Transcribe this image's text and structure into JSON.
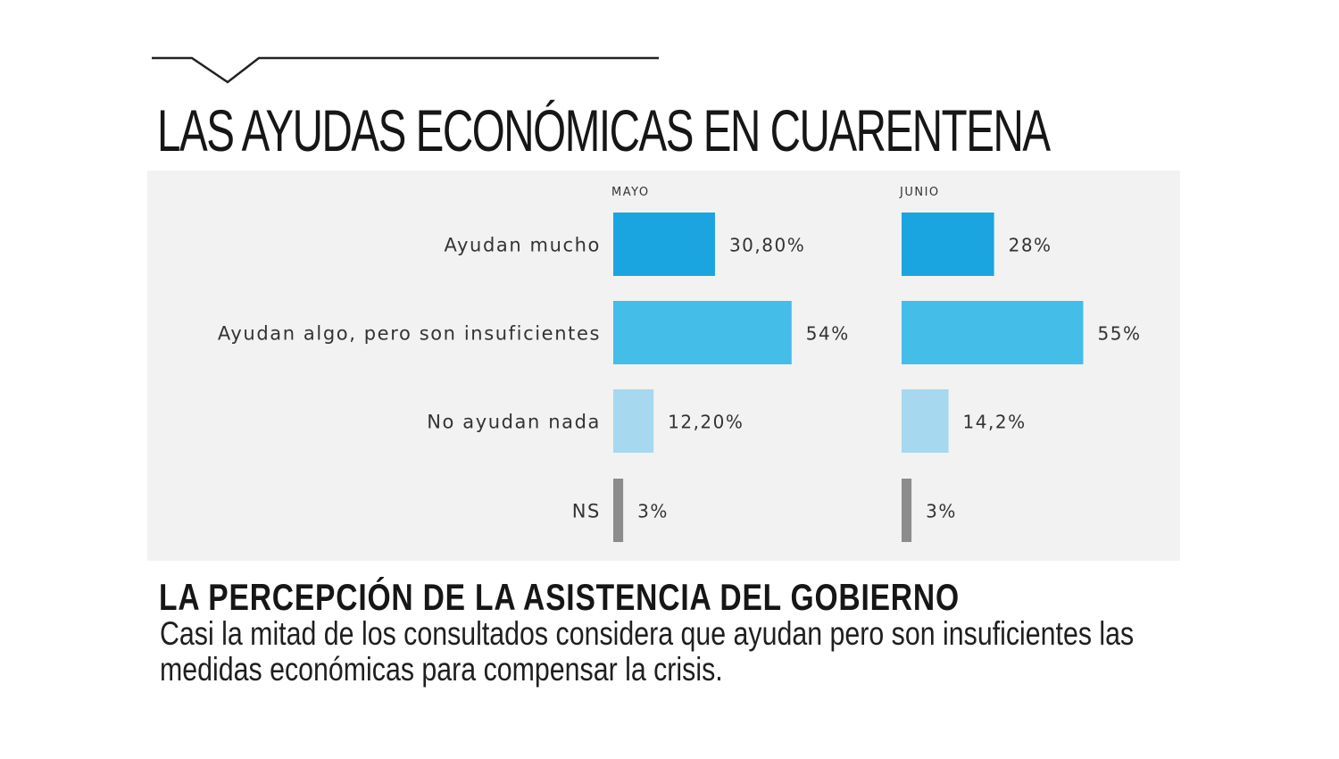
{
  "headline": {
    "title": "LAS AYUDAS ECONÓMICAS EN CUARENTENA"
  },
  "footer": {
    "subtitle": "LA PERCEPCIÓN DE LA ASISTENCIA DEL GOBIERNO",
    "description": "Casi la mitad de los consultados considera que ayudan pero son insuficientes las medidas económicas para compensar la crisis."
  },
  "chart_data": {
    "type": "bar",
    "orientation": "horizontal",
    "title": "",
    "xlabel": "",
    "ylabel": "",
    "grid": false,
    "legend": "none",
    "xlim": [
      0,
      60
    ],
    "categories": [
      "Ayudan mucho",
      "Ayudan algo, pero son insuficientes",
      "No ayudan nada",
      "NS"
    ],
    "category_colors": [
      "#1aa5e0",
      "#45bde9",
      "#a6d8f0",
      "#8c8c8c"
    ],
    "series": [
      {
        "name": "MAYO",
        "values": [
          30.8,
          54,
          12.2,
          3
        ],
        "labels": [
          "30,80%",
          "54%",
          "12,20%",
          "3%"
        ]
      },
      {
        "name": "JUNIO",
        "values": [
          28,
          55,
          14.2,
          3
        ],
        "labels": [
          "28%",
          "55%",
          "14,2%",
          "3%"
        ]
      }
    ]
  }
}
